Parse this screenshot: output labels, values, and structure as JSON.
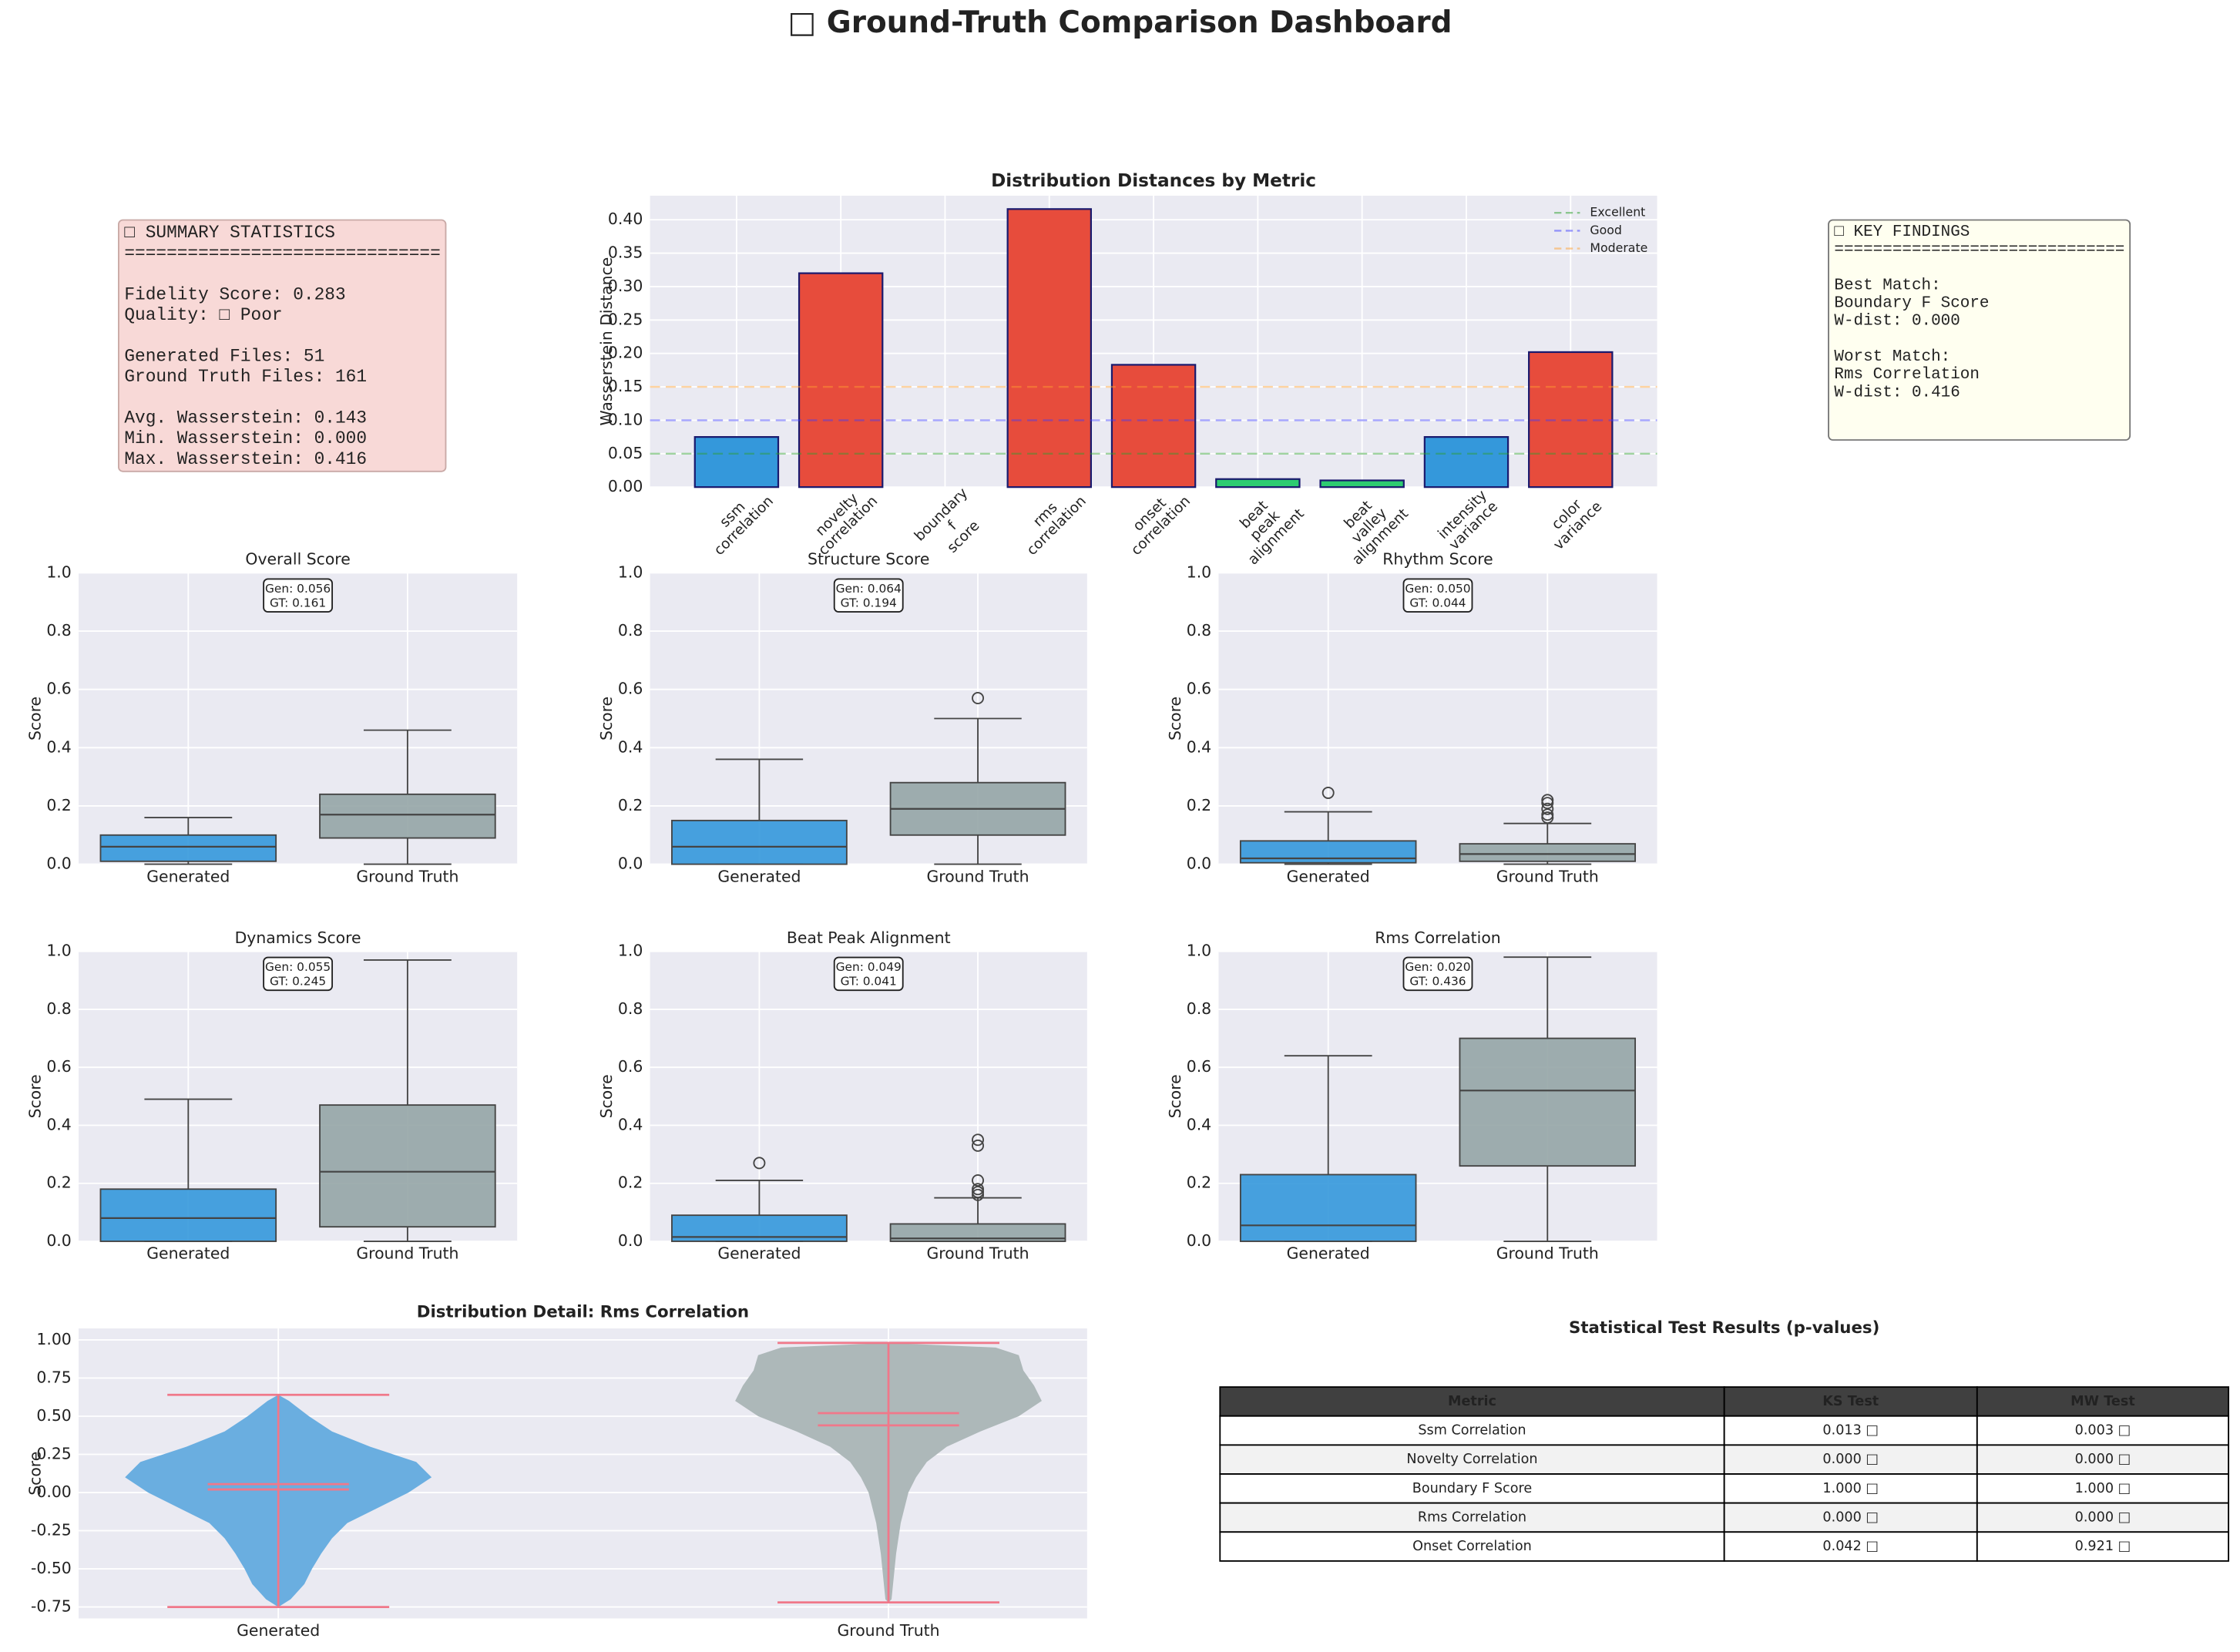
{
  "title": "□ Ground-Truth Comparison Dashboard",
  "summary": {
    "blocks": [
      [
        "□ SUMMARY STATISTICS",
        "=============================="
      ],
      [
        "Fidelity Score: 0.283",
        "Quality: □ Poor"
      ],
      [
        "Generated Files: 51",
        "Ground Truth Files: 161"
      ],
      [
        "Avg. Wasserstein: 0.143",
        "Min. Wasserstein: 0.000",
        "Max. Wasserstein: 0.416"
      ]
    ]
  },
  "findings": {
    "blocks": [
      [
        "□ KEY FINDINGS",
        "=============================="
      ],
      [
        "Best Match:",
        "Boundary F Score",
        "W-dist: 0.000"
      ],
      [
        "Worst Match:",
        "Rms Correlation",
        "W-dist: 0.416"
      ]
    ]
  },
  "chart_data": [
    {
      "type": "bar",
      "title": "Distribution Distances by Metric",
      "ylabel": "Wasserstein Distance",
      "categories": [
        [
          "ssm",
          "correlation"
        ],
        [
          "novelty",
          "correlation"
        ],
        [
          "boundary",
          "f",
          "score"
        ],
        [
          "rms",
          "correlation"
        ],
        [
          "onset",
          "correlation"
        ],
        [
          "beat",
          "peak",
          "alignment"
        ],
        [
          "beat",
          "valley",
          "alignment"
        ],
        [
          "intensity",
          "variance"
        ],
        [
          "color",
          "variance"
        ]
      ],
      "values": [
        0.075,
        0.32,
        0,
        0.416,
        0.183,
        0.012,
        0.01,
        0.075,
        0.202
      ],
      "colors": [
        "#3498db",
        "#e74c3c",
        "#2ecc71",
        "#e74c3c",
        "#e74c3c",
        "#2ecc71",
        "#2ecc71",
        "#3498db",
        "#e74c3c"
      ],
      "edge_color": "#1a1a6e",
      "thresholds": [
        {
          "name": "Excellent",
          "value": 0.05,
          "color": "#2ca02c"
        },
        {
          "name": "Good",
          "value": 0.1,
          "color": "#3b3bff"
        },
        {
          "name": "Moderate",
          "value": 0.15,
          "color": "#ff9f2e"
        }
      ],
      "legend": "upper right",
      "grid": true,
      "ylim": [
        0,
        0.436
      ],
      "yticks": [
        {
          "value": 0,
          "label": "0.00"
        },
        0.05,
        {
          "value": 0.1,
          "label": "0.10"
        },
        0.15,
        {
          "value": 0.2,
          "label": "0.20"
        },
        0.25,
        {
          "value": 0.3,
          "label": "0.30"
        },
        0.35,
        {
          "value": 0.4,
          "label": "0.40"
        }
      ]
    },
    {
      "type": "box",
      "title": "Overall Score",
      "ylabel": "Score",
      "categories": [
        "Generated",
        "Ground Truth"
      ],
      "colors": [
        "#3498db",
        "#95a5a6"
      ],
      "boxes": [
        {
          "whislo": 0,
          "q1": 0.01,
          "med": 0.06,
          "q3": 0.1,
          "whishi": 0.16,
          "fliers": []
        },
        {
          "whislo": 0,
          "q1": 0.09,
          "med": 0.17,
          "q3": 0.24,
          "whishi": 0.46,
          "fliers": []
        }
      ],
      "annotation": [
        "Gen: 0.056",
        "GT: 0.161"
      ],
      "ylim": [
        0,
        1
      ],
      "yticks": [
        {
          "value": 0,
          "label": "0.0"
        },
        0.2,
        0.4,
        0.6,
        0.8,
        {
          "value": 1,
          "label": "1.0"
        }
      ],
      "grid": true
    },
    {
      "type": "box",
      "title": "Structure Score",
      "ylabel": "Score",
      "categories": [
        "Generated",
        "Ground Truth"
      ],
      "colors": [
        "#3498db",
        "#95a5a6"
      ],
      "boxes": [
        {
          "whislo": 0,
          "q1": 0,
          "med": 0.06,
          "q3": 0.15,
          "whishi": 0.36,
          "fliers": []
        },
        {
          "whislo": 0,
          "q1": 0.1,
          "med": 0.19,
          "q3": 0.28,
          "whishi": 0.5,
          "fliers": [
            0.57
          ]
        }
      ],
      "annotation": [
        "Gen: 0.064",
        "GT: 0.194"
      ],
      "ylim": [
        0,
        1
      ],
      "yticks": [
        {
          "value": 0,
          "label": "0.0"
        },
        0.2,
        0.4,
        0.6,
        0.8,
        {
          "value": 1,
          "label": "1.0"
        }
      ],
      "grid": true
    },
    {
      "type": "box",
      "title": "Rhythm Score",
      "ylabel": "Score",
      "categories": [
        "Generated",
        "Ground Truth"
      ],
      "colors": [
        "#3498db",
        "#95a5a6"
      ],
      "boxes": [
        {
          "whislo": 0,
          "q1": 0.005,
          "med": 0.02,
          "q3": 0.08,
          "whishi": 0.18,
          "fliers": [
            0.245
          ]
        },
        {
          "whislo": 0,
          "q1": 0.01,
          "med": 0.035,
          "q3": 0.07,
          "whishi": 0.14,
          "fliers": [
            0.16,
            0.17,
            0.19,
            0.21,
            0.22
          ]
        }
      ],
      "annotation": [
        "Gen: 0.050",
        "GT: 0.044"
      ],
      "ylim": [
        0,
        1
      ],
      "yticks": [
        {
          "value": 0,
          "label": "0.0"
        },
        0.2,
        0.4,
        0.6,
        0.8,
        {
          "value": 1,
          "label": "1.0"
        }
      ],
      "grid": true
    },
    {
      "type": "box",
      "title": "Dynamics Score",
      "ylabel": "Score",
      "categories": [
        "Generated",
        "Ground Truth"
      ],
      "colors": [
        "#3498db",
        "#95a5a6"
      ],
      "boxes": [
        {
          "whislo": 0,
          "q1": 0,
          "med": 0.08,
          "q3": 0.18,
          "whishi": 0.49,
          "fliers": []
        },
        {
          "whislo": 0,
          "q1": 0.05,
          "med": 0.24,
          "q3": 0.47,
          "whishi": 0.97,
          "fliers": []
        }
      ],
      "annotation": [
        "Gen: 0.055",
        "GT: 0.245"
      ],
      "ylim": [
        0,
        1
      ],
      "yticks": [
        {
          "value": 0,
          "label": "0.0"
        },
        0.2,
        0.4,
        0.6,
        0.8,
        {
          "value": 1,
          "label": "1.0"
        }
      ],
      "grid": true
    },
    {
      "type": "box",
      "title": "Beat Peak Alignment",
      "ylabel": "Score",
      "categories": [
        "Generated",
        "Ground Truth"
      ],
      "colors": [
        "#3498db",
        "#95a5a6"
      ],
      "boxes": [
        {
          "whislo": 0,
          "q1": 0,
          "med": 0.015,
          "q3": 0.09,
          "whishi": 0.21,
          "fliers": [
            0.27
          ]
        },
        {
          "whislo": 0,
          "q1": 0,
          "med": 0.01,
          "q3": 0.06,
          "whishi": 0.15,
          "fliers": [
            0.16,
            0.17,
            0.18,
            0.21,
            0.33,
            0.35
          ]
        }
      ],
      "annotation": [
        "Gen: 0.049",
        "GT: 0.041"
      ],
      "ylim": [
        0,
        1
      ],
      "yticks": [
        {
          "value": 0,
          "label": "0.0"
        },
        0.2,
        0.4,
        0.6,
        0.8,
        {
          "value": 1,
          "label": "1.0"
        }
      ],
      "grid": true
    },
    {
      "type": "box",
      "title": "Rms Correlation",
      "ylabel": "Score",
      "categories": [
        "Generated",
        "Ground Truth"
      ],
      "colors": [
        "#3498db",
        "#95a5a6"
      ],
      "boxes": [
        {
          "whislo": 0,
          "q1": 0,
          "med": 0.055,
          "q3": 0.23,
          "whishi": 0.64,
          "fliers": []
        },
        {
          "whislo": 0,
          "q1": 0.26,
          "med": 0.52,
          "q3": 0.7,
          "whishi": 0.98,
          "fliers": []
        }
      ],
      "annotation": [
        "Gen: 0.020",
        "GT: 0.436"
      ],
      "ylim": [
        0,
        1
      ],
      "yticks": [
        {
          "value": 0,
          "label": "0.0"
        },
        0.2,
        0.4,
        0.6,
        0.8,
        {
          "value": 1,
          "label": "1.0"
        }
      ],
      "grid": true
    },
    {
      "type": "violin",
      "title": "Distribution Detail: Rms Correlation",
      "ylabel": "Score",
      "categories": [
        "Generated",
        "Ground Truth"
      ],
      "colors": [
        "#6aaee0",
        "#adb8b9"
      ],
      "line_color": "#f0788a",
      "profiles": [
        {
          "y": [
            -0.75,
            -0.7,
            -0.6,
            -0.5,
            -0.4,
            -0.3,
            -0.2,
            -0.1,
            0,
            0.1,
            0.2,
            0.3,
            0.4,
            0.5,
            0.6,
            0.64
          ],
          "width": [
            0,
            0.08,
            0.17,
            0.22,
            0.28,
            0.35,
            0.45,
            0.65,
            0.85,
            1,
            0.9,
            0.6,
            0.35,
            0.2,
            0.07,
            0
          ]
        },
        {
          "y": [
            -0.72,
            -0.7,
            -0.6,
            -0.4,
            -0.2,
            0,
            0.1,
            0.2,
            0.3,
            0.4,
            0.5,
            0.6,
            0.7,
            0.8,
            0.9,
            0.95,
            0.98
          ],
          "width": [
            0,
            0.02,
            0.03,
            0.05,
            0.08,
            0.13,
            0.18,
            0.25,
            0.38,
            0.6,
            0.85,
            1,
            0.95,
            0.88,
            0.85,
            0.7,
            0
          ]
        }
      ],
      "extrema": [
        [
          -0.75,
          0.64
        ],
        [
          -0.72,
          0.98
        ]
      ],
      "means": [
        0.02,
        0.44
      ],
      "medians": [
        0.055,
        0.52
      ],
      "ylim": [
        -0.825,
        1.075
      ],
      "yticks": [
        -0.75,
        {
          "value": -0.5,
          "label": "-0.50"
        },
        -0.25,
        {
          "value": 0,
          "label": "0.00"
        },
        0.25,
        {
          "value": 0.5,
          "label": "0.50"
        },
        0.75,
        {
          "value": 1,
          "label": "1.00"
        }
      ],
      "grid": true
    }
  ],
  "table": {
    "title": "Statistical Test Results (p-values)",
    "columns": [
      "Metric",
      "KS Test",
      "MW Test"
    ],
    "rows": [
      [
        "Ssm Correlation",
        "0.013 □",
        "0.003 □"
      ],
      [
        "Novelty Correlation",
        "0.000 □",
        "0.000 □"
      ],
      [
        "Boundary F Score",
        "1.000 □",
        "1.000 □"
      ],
      [
        "Rms Correlation",
        "0.000 □",
        "0.000 □"
      ],
      [
        "Onset Correlation",
        "0.042 □",
        "0.921 □"
      ]
    ]
  }
}
